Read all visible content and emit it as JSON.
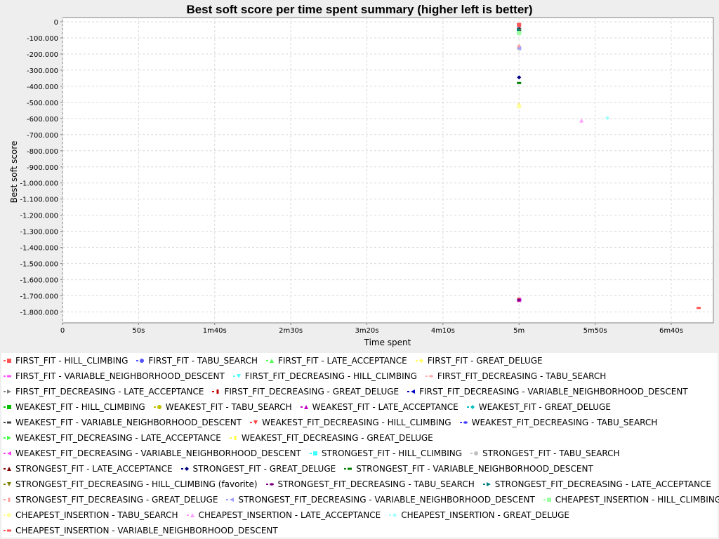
{
  "chart_data": {
    "type": "scatter",
    "title": "Best soft score per time spent summary (higher left is better)",
    "xlabel": "Time spent",
    "ylabel": "Best soft score",
    "xlim": [
      0,
      418
    ],
    "ylim": [
      -1850,
      0
    ],
    "x_ticks": [
      {
        "value": 0,
        "label": "0"
      },
      {
        "value": 50,
        "label": "50s"
      },
      {
        "value": 100,
        "label": "1m40s"
      },
      {
        "value": 150,
        "label": "2m30s"
      },
      {
        "value": 200,
        "label": "3m20s"
      },
      {
        "value": 250,
        "label": "4m10s"
      },
      {
        "value": 300,
        "label": "5m"
      },
      {
        "value": 350,
        "label": "5m50s"
      },
      {
        "value": 400,
        "label": "6m40s"
      }
    ],
    "y_ticks": [
      {
        "value": 0,
        "label": "0"
      },
      {
        "value": -100,
        "label": "-100.000"
      },
      {
        "value": -200,
        "label": "-200.000"
      },
      {
        "value": -300,
        "label": "-300.000"
      },
      {
        "value": -400,
        "label": "-400.000"
      },
      {
        "value": -500,
        "label": "-500.000"
      },
      {
        "value": -600,
        "label": "-600.000"
      },
      {
        "value": -700,
        "label": "-700.000"
      },
      {
        "value": -800,
        "label": "-800.000"
      },
      {
        "value": -900,
        "label": "-900.000"
      },
      {
        "value": -1000,
        "label": "-1.000.000"
      },
      {
        "value": -1100,
        "label": "-1.100.000"
      },
      {
        "value": -1200,
        "label": "-1.200.000"
      },
      {
        "value": -1300,
        "label": "-1.300.000"
      },
      {
        "value": -1400,
        "label": "-1.400.000"
      },
      {
        "value": -1500,
        "label": "-1.500.000"
      },
      {
        "value": -1600,
        "label": "-1.600.000"
      },
      {
        "value": -1700,
        "label": "-1.700.000"
      },
      {
        "value": -1800,
        "label": "-1.800.000"
      }
    ],
    "grid": true,
    "legend_position": "bottom",
    "series": [
      {
        "name": "FIRST_FIT - HILL_CLIMBING",
        "color": "#ff5555",
        "marker": "square",
        "points": [
          [
            300,
            -20
          ]
        ]
      },
      {
        "name": "FIRST_FIT - TABU_SEARCH",
        "color": "#5555ff",
        "marker": "circle",
        "points": [
          [
            300,
            -45
          ]
        ]
      },
      {
        "name": "FIRST_FIT - LATE_ACCEPTANCE",
        "color": "#55ff55",
        "marker": "triangle-up",
        "points": [
          [
            300,
            -65
          ]
        ]
      },
      {
        "name": "FIRST_FIT - GREAT_DELUGE",
        "color": "#ffff55",
        "marker": "diamond",
        "points": [
          [
            300,
            -525
          ]
        ]
      },
      {
        "name": "FIRST_FIT - VARIABLE_NEIGHBORHOOD_DESCENT",
        "color": "#ff55ff",
        "marker": "rect-h",
        "points": [
          [
            300,
            -1725
          ]
        ]
      },
      {
        "name": "FIRST_FIT_DECREASING - HILL_CLIMBING",
        "color": "#55ffff",
        "marker": "triangle-down",
        "points": [
          [
            300,
            -60
          ]
        ]
      },
      {
        "name": "FIRST_FIT_DECREASING - TABU_SEARCH",
        "color": "#ffafaf",
        "marker": "ellipse",
        "points": [
          [
            300,
            -155
          ]
        ]
      },
      {
        "name": "FIRST_FIT_DECREASING - LATE_ACCEPTANCE",
        "color": "#808080",
        "marker": "triangle-right",
        "points": [
          [
            300,
            -50
          ]
        ]
      },
      {
        "name": "FIRST_FIT_DECREASING - GREAT_DELUGE",
        "color": "#c00000",
        "marker": "rect-v",
        "points": [
          [
            300,
            -520
          ]
        ]
      },
      {
        "name": "FIRST_FIT_DECREASING - VARIABLE_NEIGHBORHOOD_DESCENT",
        "color": "#0000c0",
        "marker": "triangle-left",
        "points": [
          [
            300,
            -1725
          ]
        ]
      },
      {
        "name": "WEAKEST_FIT - HILL_CLIMBING",
        "color": "#00c000",
        "marker": "square",
        "points": [
          [
            300,
            -60
          ]
        ]
      },
      {
        "name": "WEAKEST_FIT - TABU_SEARCH",
        "color": "#c0c000",
        "marker": "circle",
        "points": [
          [
            300,
            -525
          ]
        ]
      },
      {
        "name": "WEAKEST_FIT - LATE_ACCEPTANCE",
        "color": "#c000c0",
        "marker": "triangle-up",
        "points": [
          [
            300,
            -1725
          ]
        ]
      },
      {
        "name": "WEAKEST_FIT - GREAT_DELUGE",
        "color": "#00c0c0",
        "marker": "diamond",
        "points": [
          [
            300,
            -45
          ]
        ]
      },
      {
        "name": "WEAKEST_FIT - VARIABLE_NEIGHBORHOOD_DESCENT",
        "color": "#404040",
        "marker": "rect-h",
        "points": [
          [
            300,
            -45
          ]
        ]
      },
      {
        "name": "WEAKEST_FIT_DECREASING - HILL_CLIMBING",
        "color": "#ff4040",
        "marker": "triangle-down",
        "points": [
          [
            300,
            -1725
          ]
        ]
      },
      {
        "name": "WEAKEST_FIT_DECREASING - TABU_SEARCH",
        "color": "#4040ff",
        "marker": "ellipse",
        "points": [
          [
            300,
            -1725
          ]
        ]
      },
      {
        "name": "WEAKEST_FIT_DECREASING - LATE_ACCEPTANCE",
        "color": "#40ff40",
        "marker": "triangle-right",
        "points": [
          [
            300,
            -60
          ]
        ]
      },
      {
        "name": "WEAKEST_FIT_DECREASING - GREAT_DELUGE",
        "color": "#ffff40",
        "marker": "rect-v",
        "points": [
          [
            300,
            -520
          ]
        ]
      },
      {
        "name": "WEAKEST_FIT_DECREASING - VARIABLE_NEIGHBORHOOD_DESCENT",
        "color": "#ff40ff",
        "marker": "triangle-left",
        "points": [
          [
            300,
            -1725
          ]
        ]
      },
      {
        "name": "STRONGEST_FIT - HILL_CLIMBING",
        "color": "#40ffff",
        "marker": "square",
        "points": [
          [
            300,
            -60
          ]
        ]
      },
      {
        "name": "STRONGEST_FIT - TABU_SEARCH",
        "color": "#c0c0c0",
        "marker": "circle",
        "points": [
          [
            300,
            -165
          ]
        ]
      },
      {
        "name": "STRONGEST_FIT - LATE_ACCEPTANCE",
        "color": "#800000",
        "marker": "triangle-up",
        "points": [
          [
            300,
            -45
          ]
        ]
      },
      {
        "name": "STRONGEST_FIT - GREAT_DELUGE",
        "color": "#000080",
        "marker": "diamond",
        "points": [
          [
            300,
            -345
          ]
        ]
      },
      {
        "name": "STRONGEST_FIT - VARIABLE_NEIGHBORHOOD_DESCENT",
        "color": "#008000",
        "marker": "rect-h",
        "points": [
          [
            300,
            -380
          ]
        ]
      },
      {
        "name": "STRONGEST_FIT_DECREASING - HILL_CLIMBING (favorite)",
        "color": "#808000",
        "marker": "triangle-down",
        "points": [
          [
            300,
            -55
          ]
        ]
      },
      {
        "name": "STRONGEST_FIT_DECREASING - TABU_SEARCH",
        "color": "#800080",
        "marker": "ellipse",
        "points": [
          [
            300,
            -1725
          ]
        ]
      },
      {
        "name": "STRONGEST_FIT_DECREASING - LATE_ACCEPTANCE",
        "color": "#008080",
        "marker": "triangle-right",
        "points": [
          [
            300,
            -50
          ]
        ]
      },
      {
        "name": "STRONGEST_FIT_DECREASING - GREAT_DELUGE",
        "color": "#ff9e9e",
        "marker": "rect-v",
        "points": [
          [
            300,
            -155
          ]
        ]
      },
      {
        "name": "STRONGEST_FIT_DECREASING - VARIABLE_NEIGHBORHOOD_DESCENT",
        "color": "#9e9eff",
        "marker": "triangle-left",
        "points": [
          [
            300,
            -165
          ]
        ]
      },
      {
        "name": "CHEAPEST_INSERTION - HILL_CLIMBING",
        "color": "#9eff9e",
        "marker": "square",
        "points": [
          [
            300,
            -70
          ]
        ]
      },
      {
        "name": "CHEAPEST_INSERTION - TABU_SEARCH",
        "color": "#ffff9e",
        "marker": "circle",
        "points": [
          [
            300,
            -525
          ]
        ]
      },
      {
        "name": "CHEAPEST_INSERTION - LATE_ACCEPTANCE",
        "color": "#ff9eff",
        "marker": "triangle-up",
        "points": [
          [
            341,
            -612
          ]
        ]
      },
      {
        "name": "CHEAPEST_INSERTION - GREAT_DELUGE",
        "color": "#9effff",
        "marker": "diamond",
        "points": [
          [
            358,
            -597
          ]
        ]
      },
      {
        "name": "CHEAPEST_INSERTION - VARIABLE_NEIGHBORHOOD_DESCENT",
        "color": "#ff5555",
        "marker": "rect-h",
        "points": [
          [
            418,
            -1775
          ]
        ]
      }
    ]
  }
}
